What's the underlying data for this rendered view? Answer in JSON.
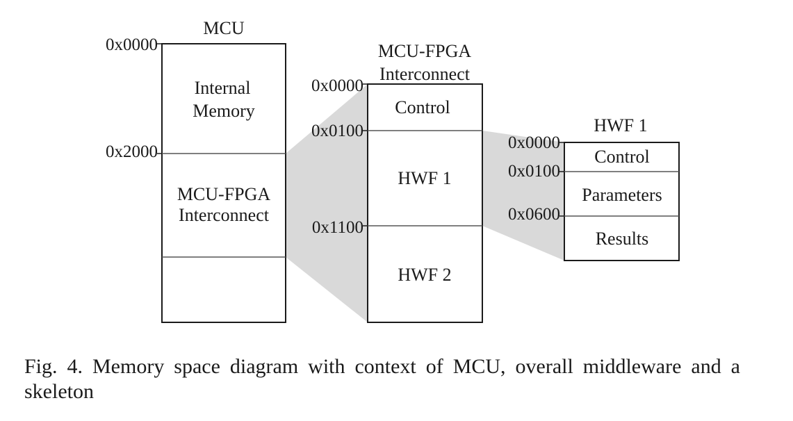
{
  "diagram": {
    "mcu": {
      "title": "MCU",
      "addr_top": "0x0000",
      "addr_mid": "0x2000",
      "region_internal_line1": "Internal",
      "region_internal_line2": "Memory",
      "region_interconnect_line1": "MCU-FPGA",
      "region_interconnect_line2": "Interconnect"
    },
    "interconnect": {
      "title_line1": "MCU-FPGA",
      "title_line2": "Interconnect",
      "addr_0": "0x0000",
      "addr_1": "0x0100",
      "addr_2": "0x1100",
      "region_control": "Control",
      "region_hwf1": "HWF 1",
      "region_hwf2": "HWF 2"
    },
    "hwf1": {
      "title": "HWF 1",
      "addr_0": "0x0000",
      "addr_1": "0x0100",
      "addr_2": "0x0600",
      "region_control": "Control",
      "region_parameters": "Parameters",
      "region_results": "Results"
    }
  },
  "caption": {
    "label": "Fig. 4.",
    "text": "Memory space diagram with context of MCU, overall middleware and a skeleton"
  },
  "colors": {
    "line": "#1a1a1a",
    "projection": "#d9d9d9"
  }
}
